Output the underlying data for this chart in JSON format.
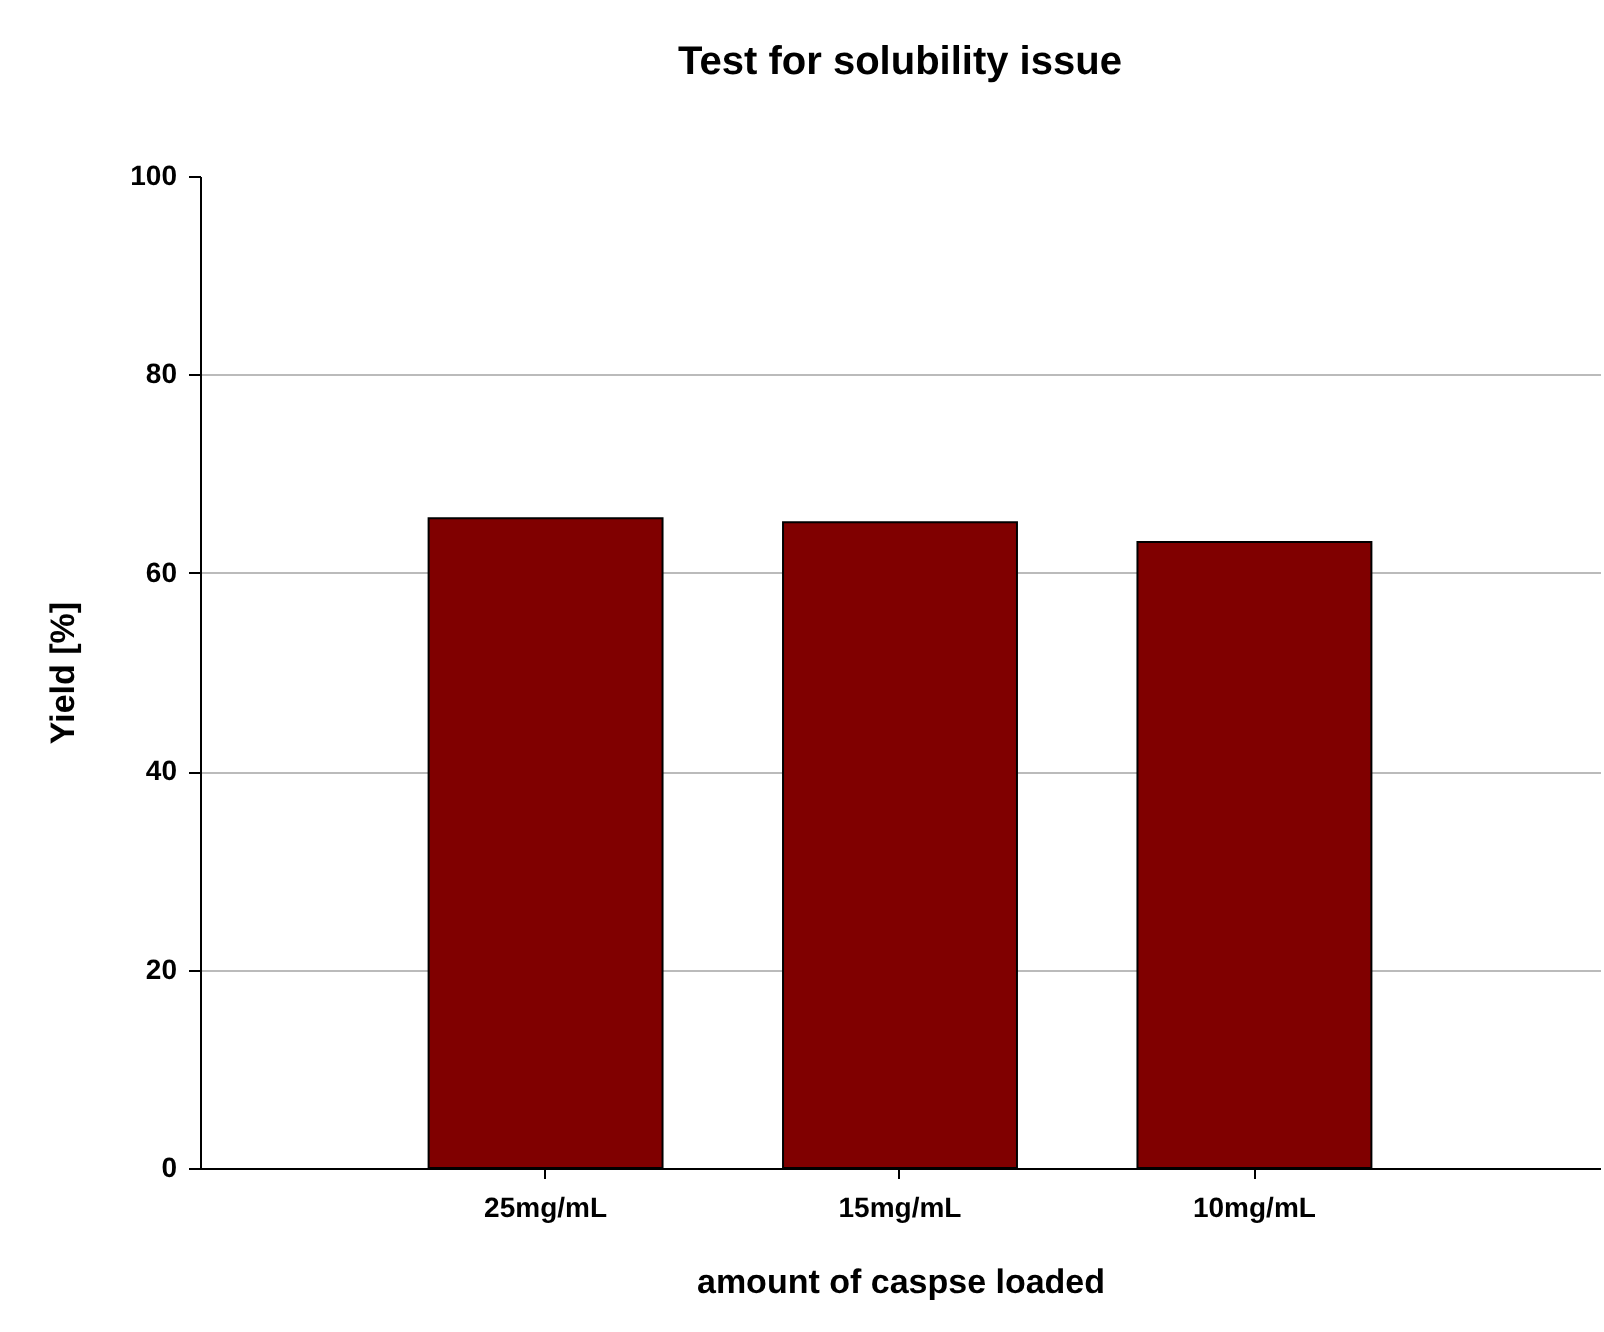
{
  "chart_data": {
    "type": "bar",
    "title": "Test for solubility issue",
    "xlabel": "amount of caspse loaded",
    "ylabel": "Yield [%]",
    "categories": [
      "25mg/mL",
      "15mg/mL",
      "10mg/mL"
    ],
    "values": [
      65.5,
      65.1,
      63.1
    ],
    "color": "#800000",
    "ylim": [
      0,
      100
    ],
    "yticks": [
      0,
      20,
      40,
      60,
      80,
      100
    ],
    "grid": "y"
  }
}
